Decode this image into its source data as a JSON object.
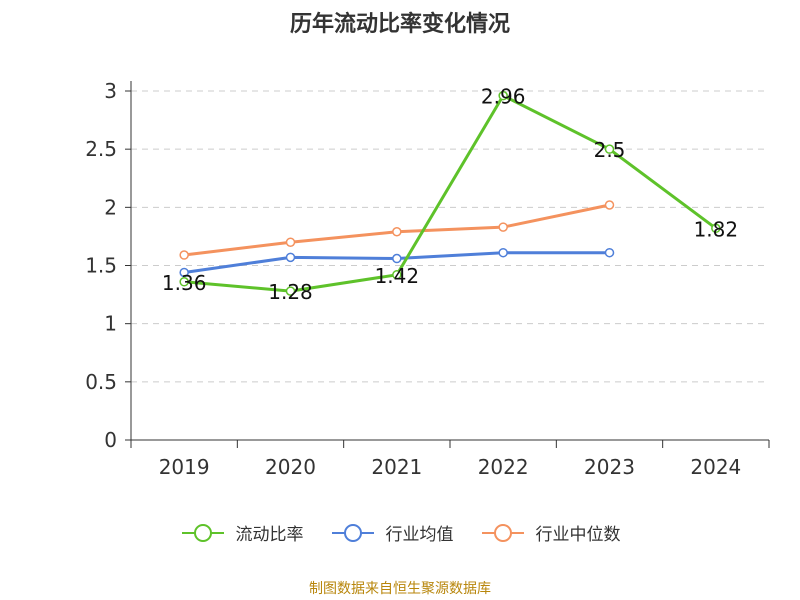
{
  "chart_data": {
    "type": "line",
    "title": "历年流动比率变化情况",
    "categories": [
      "2019",
      "2020",
      "2021",
      "2022",
      "2023",
      "2024"
    ],
    "ylim": [
      0,
      3
    ],
    "yticks": [
      "0",
      "0.5",
      "1",
      "1.5",
      "2",
      "2.5",
      "3"
    ],
    "grid": true,
    "legend_position": "bottom",
    "series": [
      {
        "name": "流动比率",
        "color": "#5ec22a",
        "values": [
          1.36,
          1.28,
          1.42,
          2.96,
          2.5,
          1.82
        ],
        "labels": true
      },
      {
        "name": "行业均值",
        "color": "#4f7fd9",
        "values": [
          1.44,
          1.57,
          1.56,
          1.61,
          1.61,
          null
        ],
        "labels": false
      },
      {
        "name": "行业中位数",
        "color": "#f4925e",
        "values": [
          1.59,
          1.7,
          1.79,
          1.83,
          2.02,
          null
        ],
        "labels": false
      }
    ],
    "point_labels": [
      "1.36",
      "1.28",
      "1.42",
      "2.96",
      "2.5",
      "1.82"
    ]
  },
  "source": "制图数据来自恒生聚源数据库"
}
